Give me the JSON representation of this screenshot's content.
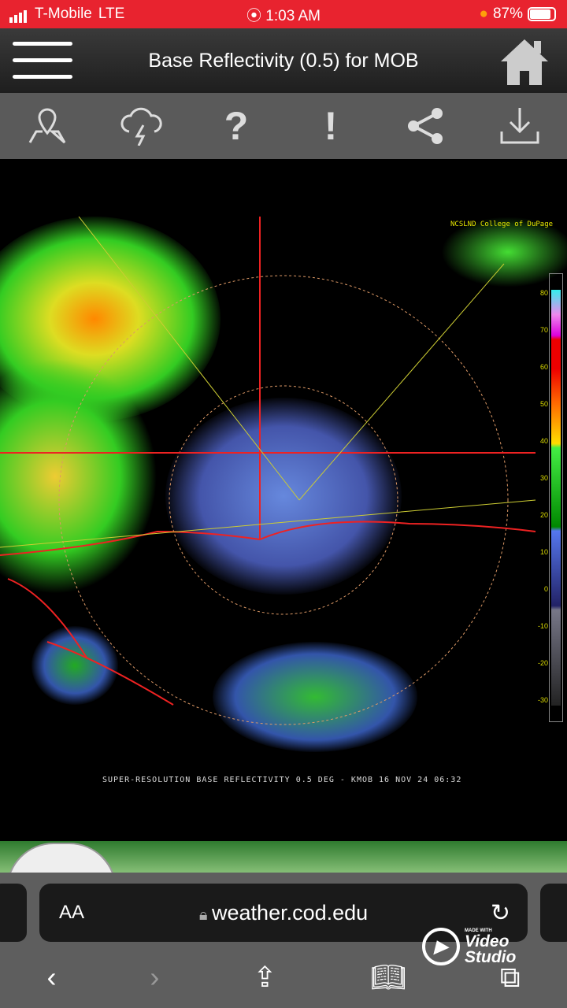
{
  "status_bar": {
    "carrier": "T-Mobile",
    "network": "LTE",
    "time": "1:03 AM",
    "battery": "87%"
  },
  "header": {
    "title": "Base Reflectivity (0.5) for MOB"
  },
  "toolbar": {
    "icons": [
      "map-pin-icon",
      "storm-icon",
      "help-icon",
      "alert-icon",
      "share-icon",
      "download-icon"
    ]
  },
  "radar": {
    "caption": "SUPER-RESOLUTION BASE REFLECTIVITY 0.5 DEG - KMOB 16 NOV 24 06:32",
    "top_right_label": "NCSLND College of DuPage",
    "scale_ticks": [
      "80",
      "70",
      "60",
      "50",
      "40",
      "30",
      "20",
      "10",
      "0",
      "-10",
      "-20",
      "-30"
    ]
  },
  "browser": {
    "aa_label": "AA",
    "url": "weather.cod.edu"
  },
  "watermark": {
    "made_with": "MADE WITH",
    "brand": "Video Studio"
  },
  "colors": {
    "status_bar": "#e8232f",
    "toolbar": "#5a5a5a",
    "safari": "#5e5e5e"
  }
}
